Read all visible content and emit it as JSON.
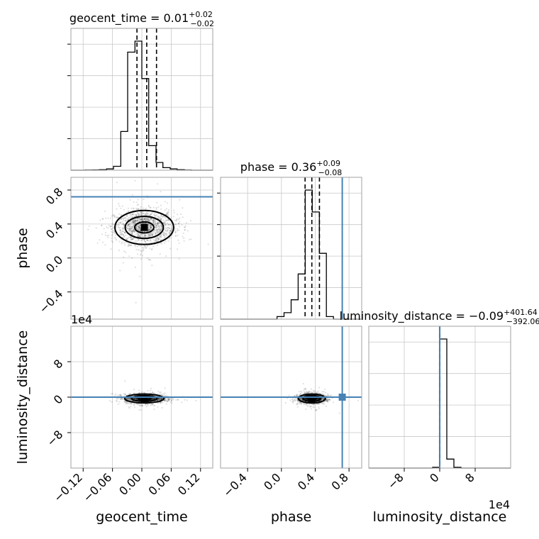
{
  "chart_data": {
    "type": "corner",
    "parameters": [
      "geocent_time",
      "phase",
      "luminosity_distance"
    ],
    "axis_labels": {
      "x": [
        "geocent_time",
        "phase",
        "luminosity_distance"
      ],
      "y": [
        "phase",
        "luminosity_distance"
      ]
    },
    "titles": [
      {
        "parameter": "geocent_time",
        "text": "geocent_time = 0.01",
        "sup": "+0.02",
        "sub": "−0.02"
      },
      {
        "parameter": "phase",
        "text": "phase = 0.36",
        "sup": "+0.09",
        "sub": "−0.08"
      },
      {
        "parameter": "luminosity_distance",
        "text": "luminosity_distance = −0.09",
        "sup": "+401.64",
        "sub": "−392.06"
      }
    ],
    "ranges": {
      "geocent_time": [
        -0.145,
        0.145
      ],
      "phase": [
        -0.72,
        0.95
      ],
      "luminosity_distance": [
        -160000,
        160000
      ]
    },
    "ticks": {
      "geocent_time": {
        "values": [
          -0.12,
          -0.06,
          0.0,
          0.06,
          0.12
        ],
        "labels": [
          "−0.12",
          "−0.06",
          "0.00",
          "0.06",
          "0.12"
        ]
      },
      "phase": {
        "values": [
          -0.4,
          0.0,
          0.4,
          0.8
        ],
        "labels": [
          "−0.4",
          "0.0",
          "0.4",
          "0.8"
        ]
      },
      "luminosity_distance": {
        "values": [
          -80000,
          0,
          80000
        ],
        "labels": [
          "−8",
          "0",
          "8"
        ]
      }
    },
    "offset_label": "1e4",
    "truths": {
      "geocent_time": null,
      "phase": 0.72,
      "luminosity_distance": 0
    },
    "quantiles": {
      "geocent_time": [
        -0.01,
        0.01,
        0.03
      ],
      "phase": [
        0.28,
        0.36,
        0.45
      ],
      "luminosity_distance": [
        -392,
        0,
        402
      ]
    },
    "histograms": {
      "geocent_time": {
        "bin_edges": [
          -0.145,
          -0.13,
          -0.116,
          -0.101,
          -0.087,
          -0.072,
          -0.058,
          -0.043,
          -0.029,
          -0.014,
          0.0,
          0.014,
          0.029,
          0.043,
          0.058,
          0.072,
          0.087,
          0.101,
          0.116,
          0.13,
          0.145
        ],
        "counts": [
          0,
          0,
          1,
          2,
          4,
          10,
          30,
          300,
          915,
          1000,
          710,
          190,
          60,
          20,
          10,
          4,
          1,
          0,
          0,
          0
        ]
      },
      "phase": {
        "bin_edges": [
          -0.72,
          -0.637,
          -0.553,
          -0.47,
          -0.386,
          -0.303,
          -0.219,
          -0.136,
          -0.052,
          0.031,
          0.115,
          0.198,
          0.282,
          0.365,
          0.449,
          0.532,
          0.616,
          0.699,
          0.783,
          0.866,
          0.95
        ],
        "counts": [
          0,
          0,
          0,
          0,
          0,
          0,
          0,
          0,
          20,
          50,
          150,
          350,
          1000,
          830,
          510,
          20,
          0,
          0,
          0,
          0
        ]
      },
      "luminosity_distance": {
        "bin_edges": [
          -160000,
          -144000,
          -128000,
          -112000,
          -96000,
          -80000,
          -64000,
          -48000,
          -32000,
          -16000,
          0,
          16000,
          32000,
          48000,
          64000,
          80000,
          96000,
          112000,
          128000,
          144000,
          160000
        ],
        "counts": [
          0,
          0,
          0,
          0,
          0,
          0,
          0,
          0,
          0,
          6,
          1000,
          70,
          6,
          0,
          0,
          0,
          0,
          0,
          0,
          0
        ]
      }
    },
    "scatter_centers": {
      "phase_vs_geocent_time": {
        "x": 0.005,
        "y": 0.36,
        "sx": 0.03,
        "sy": 0.1
      },
      "luminosity_distance_vs_geocent_time": {
        "x": 0.005,
        "y": -3000,
        "sx": 0.02,
        "sy": 5000
      },
      "luminosity_distance_vs_phase": {
        "x": 0.36,
        "y": -3000,
        "sx": 0.08,
        "sy": 5000
      }
    }
  }
}
